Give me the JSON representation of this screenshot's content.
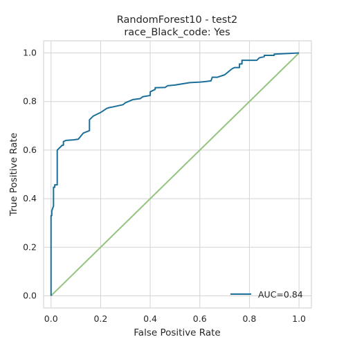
{
  "chart_data": {
    "type": "line",
    "title": [
      "RandomForest10 - test2",
      "race_Black_code: Yes"
    ],
    "xlabel": "False Positive Rate",
    "ylabel": "True Positive Rate",
    "xlim": [
      -0.03,
      1.05
    ],
    "ylim": [
      -0.05,
      1.05
    ],
    "xticks": [
      "0.0",
      "0.2",
      "0.4",
      "0.6",
      "0.8",
      "1.0"
    ],
    "yticks": [
      "0.0",
      "0.2",
      "0.4",
      "0.6",
      "0.8",
      "1.0"
    ],
    "grid": true,
    "legend_position": "lower-right",
    "series": [
      {
        "name": "AUC=0.84",
        "color": "#1a6f9a",
        "x": [
          0.0,
          0.0,
          0.003,
          0.003,
          0.01,
          0.01,
          0.015,
          0.015,
          0.025,
          0.025,
          0.045,
          0.05,
          0.05,
          0.06,
          0.09,
          0.11,
          0.13,
          0.155,
          0.155,
          0.17,
          0.2,
          0.225,
          0.235,
          0.25,
          0.29,
          0.3,
          0.33,
          0.36,
          0.37,
          0.4,
          0.4,
          0.42,
          0.42,
          0.46,
          0.47,
          0.5,
          0.56,
          0.6,
          0.62,
          0.645,
          0.65,
          0.67,
          0.7,
          0.73,
          0.74,
          0.76,
          0.76,
          0.77,
          0.77,
          0.83,
          0.84,
          0.86,
          0.86,
          0.9,
          0.9,
          1.0
        ],
        "y": [
          0.0,
          0.33,
          0.33,
          0.35,
          0.37,
          0.447,
          0.447,
          0.457,
          0.457,
          0.6,
          0.62,
          0.62,
          0.635,
          0.64,
          0.642,
          0.645,
          0.67,
          0.68,
          0.725,
          0.74,
          0.755,
          0.772,
          0.775,
          0.778,
          0.787,
          0.795,
          0.808,
          0.812,
          0.82,
          0.825,
          0.84,
          0.85,
          0.857,
          0.858,
          0.865,
          0.868,
          0.878,
          0.88,
          0.882,
          0.885,
          0.9,
          0.9,
          0.91,
          0.935,
          0.94,
          0.94,
          0.955,
          0.955,
          0.97,
          0.97,
          0.98,
          0.985,
          0.99,
          0.99,
          0.995,
          1.0
        ]
      },
      {
        "name": "",
        "color": "#93c47d",
        "x": [
          0.0,
          1.0
        ],
        "y": [
          0.0,
          1.0
        ]
      }
    ]
  }
}
